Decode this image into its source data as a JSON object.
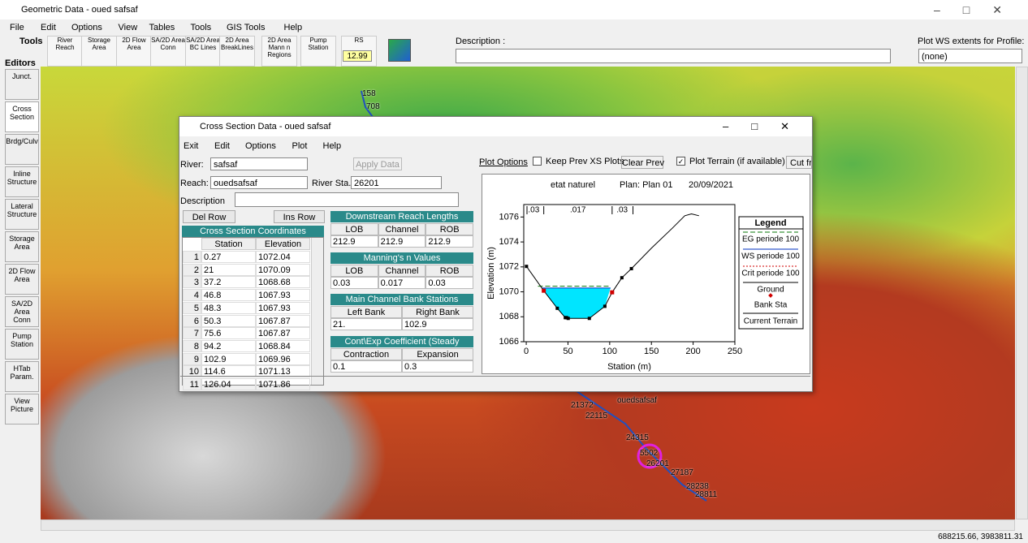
{
  "window": {
    "title": "Geometric Data - oued safsaf",
    "menu": [
      "File",
      "Edit",
      "Options",
      "View",
      "Tables",
      "Tools",
      "GIS Tools",
      "Help"
    ]
  },
  "toolbar": {
    "tools_label": "Tools",
    "buttons": [
      "River Reach",
      "Storage Area",
      "2D Flow Area",
      "SA/2D Area Conn",
      "SA/2D Area BC Lines",
      "2D Area BreakLines",
      "2D Area Mann n Regions",
      "Pump Station",
      "RS"
    ],
    "rs_value": "12.99",
    "description_label": "Description :",
    "plot_ws_label": "Plot WS extents for Profile:",
    "profile_value": "(none)"
  },
  "editors": {
    "label": "Editors",
    "buttons": [
      "Junct.",
      "Cross Section",
      "Brdg/Culv",
      "Inline Structure",
      "Lateral Structure",
      "Storage Area",
      "2D Flow Area",
      "SA/2D Area Conn",
      "Pump Station",
      "HTab Param.",
      "View Picture"
    ]
  },
  "map": {
    "labels": [
      "158",
      "708",
      "21372",
      "ouedsafsaf",
      "22115",
      "24315",
      "5502",
      "26201",
      "27187",
      "28238",
      "28811"
    ]
  },
  "status": "688215.66, 3983811.31",
  "dialog": {
    "title": "Cross Section Data - oued safsaf",
    "menu": [
      "Exit",
      "Edit",
      "Options",
      "Plot",
      "Help"
    ],
    "river_label": "River:",
    "river": "safsaf",
    "reach_label": "Reach:",
    "reach": "ouedsafsaf",
    "river_sta_label": "River Sta.:",
    "river_sta": "26201",
    "description_label": "Description",
    "apply": "Apply Data",
    "del_row": "Del Row",
    "ins_row": "Ins Row",
    "coords_title": "Cross Section Coordinates",
    "columns": [
      "Station",
      "Elevation"
    ],
    "rows": [
      [
        1,
        0.27,
        1072.04
      ],
      [
        2,
        21,
        1070.09
      ],
      [
        3,
        37.2,
        1068.68
      ],
      [
        4,
        46.8,
        1067.93
      ],
      [
        5,
        48.3,
        1067.93
      ],
      [
        6,
        50.3,
        1067.87
      ],
      [
        7,
        75.6,
        1067.87
      ],
      [
        8,
        94.2,
        1068.84
      ],
      [
        9,
        102.9,
        1069.96
      ],
      [
        10,
        114.6,
        1071.13
      ],
      [
        11,
        126.04,
        1071.86
      ]
    ],
    "downstream": {
      "title": "Downstream Reach Lengths",
      "headers": [
        "LOB",
        "Channel",
        "ROB"
      ],
      "values": [
        "212.9",
        "212.9",
        "212.9"
      ]
    },
    "mannings": {
      "title": "Manning's n Values",
      "headers": [
        "LOB",
        "Channel",
        "ROB"
      ],
      "values": [
        "0.03",
        "0.017",
        "0.03"
      ]
    },
    "banks": {
      "title": "Main Channel Bank Stations",
      "headers": [
        "Left Bank",
        "Right Bank"
      ],
      "values": [
        "21.",
        "102.9"
      ]
    },
    "coef": {
      "title": "Cont\\Exp Coefficient (Steady",
      "headers": [
        "Contraction",
        "Expansion"
      ],
      "values": [
        "0.1",
        "0.3"
      ]
    },
    "plot_options": "Plot Options",
    "keep_prev": "Keep Prev XS Plots",
    "clear_prev": "Clear Prev",
    "plot_terrain": "Plot Terrain (if available)",
    "cut": "Cut fr",
    "plot": {
      "title": "etat naturel",
      "plan": "Plan: Plan 01",
      "date": "20/09/2021",
      "xlabel": "Station (m)",
      "ylabel": "Elevation (m)",
      "n_labels": [
        ".03",
        ".017",
        ".03"
      ],
      "xlim": [
        -3,
        250
      ],
      "ylim": [
        1066,
        1077
      ],
      "xticks": [
        0,
        50,
        100,
        150,
        200,
        250
      ],
      "yticks": [
        1066,
        1068,
        1070,
        1072,
        1074,
        1076
      ],
      "ground": {
        "x": [
          0.27,
          21,
          37.2,
          46.8,
          48.3,
          50.3,
          75.6,
          94.2,
          102.9,
          114.6,
          126.04,
          150,
          175,
          190,
          198,
          207
        ],
        "y": [
          1072.04,
          1070.09,
          1068.68,
          1067.93,
          1067.93,
          1067.87,
          1067.87,
          1068.84,
          1069.96,
          1071.13,
          1071.86,
          1073.5,
          1075.1,
          1076.1,
          1076.25,
          1076.1
        ]
      },
      "eg": {
        "x": [
          14,
          101
        ],
        "y": [
          1070.45,
          1070.45
        ]
      },
      "ws": {
        "x": [
          19,
          101
        ],
        "y": [
          1070.3,
          1070.3
        ]
      },
      "bank_sta": {
        "x": [
          21,
          102.9
        ],
        "y": [
          1070.09,
          1069.96
        ]
      },
      "legend": {
        "title": "Legend",
        "entries": [
          "EG periode 100",
          "WS periode 100",
          "Crit periode 100",
          "Ground",
          "Bank Sta",
          "Current Terrain"
        ]
      }
    }
  }
}
